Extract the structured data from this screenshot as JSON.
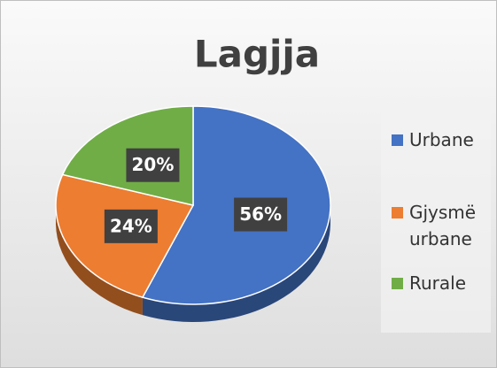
{
  "chart_data": {
    "type": "pie",
    "title": "Lagjja",
    "categories": [
      "Urbane",
      "Gjysmë urbane",
      "Rurale"
    ],
    "values": [
      56,
      24,
      20
    ],
    "value_labels": [
      "56%",
      "24%",
      "20%"
    ],
    "colors": [
      "#4472c4",
      "#ed7d31",
      "#70ad47"
    ],
    "legend": "right"
  }
}
